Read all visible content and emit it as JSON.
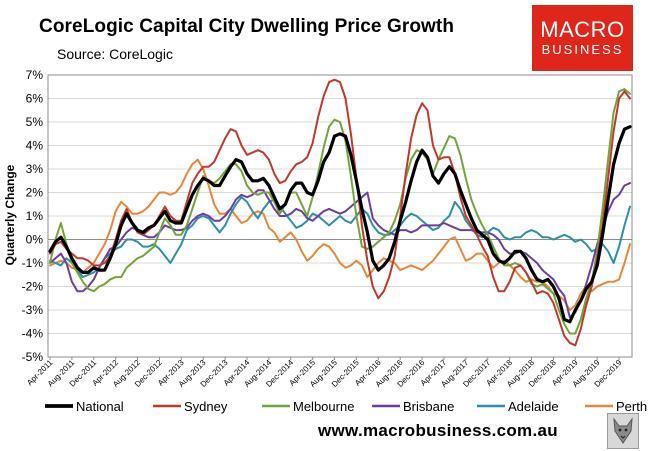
{
  "title": "CoreLogic Capital City Dwelling Price Growth",
  "source": "Source: CoreLogic",
  "logo": {
    "line1": "MACRO",
    "line2": "BUSINESS",
    "color": "#e0251b"
  },
  "footer": "www.macrobusiness.com.au",
  "badge_icon": "wolf-mascot-icon",
  "chart_data": {
    "type": "line",
    "title": "CoreLogic Capital City Dwelling Price Growth",
    "xlabel": "",
    "ylabel": "Quarterly Change",
    "ylim": [
      -5,
      7
    ],
    "yticks": [
      "-5%",
      "-4%",
      "-3%",
      "-2%",
      "-1%",
      "0%",
      "1%",
      "2%",
      "3%",
      "4%",
      "5%",
      "6%",
      "7%"
    ],
    "xticks": [
      "Apr-2011",
      "Aug-2011",
      "Dec-2011",
      "Apr-2012",
      "Aug-2012",
      "Dec-2012",
      "Apr-2013",
      "Aug-2013",
      "Dec-2013",
      "Apr-2014",
      "Aug-2014",
      "Dec-2014",
      "Apr-2015",
      "Aug-2015",
      "Dec-2015",
      "Apr-2016",
      "Aug-2016",
      "Dec-2016",
      "Apr-2017",
      "Aug-2017",
      "Dec-2017",
      "Apr-2018",
      "Aug-2018",
      "Dec-2018",
      "Apr-2019",
      "Aug-2019",
      "Dec-2019"
    ],
    "x_start": "Apr-2011",
    "x_interval_months": 1,
    "legend_position": "bottom",
    "series": [
      {
        "name": "National",
        "color": "#000000",
        "width": 3.2,
        "values": [
          -0.5,
          -0.1,
          0.1,
          -0.3,
          -0.8,
          -1.2,
          -1.4,
          -1.4,
          -1.2,
          -1.3,
          -1.3,
          -0.8,
          -0.2,
          0.6,
          1.1,
          0.7,
          0.4,
          0.3,
          0.5,
          0.6,
          0.9,
          1.2,
          0.8,
          0.7,
          0.7,
          1.3,
          1.9,
          2.3,
          2.6,
          2.5,
          2.3,
          2.3,
          2.7,
          3.1,
          3.4,
          3.3,
          2.8,
          2.5,
          2.5,
          2.6,
          2.3,
          1.8,
          1.3,
          1.5,
          2.1,
          2.4,
          2.4,
          2.0,
          1.9,
          2.5,
          3.3,
          3.7,
          4.4,
          4.5,
          4.4,
          3.6,
          2.5,
          1.3,
          0.3,
          -0.9,
          -1.3,
          -1.1,
          -0.8,
          -0.1,
          0.8,
          1.6,
          2.5,
          3.3,
          3.8,
          3.5,
          2.7,
          2.4,
          2.8,
          3.1,
          2.8,
          2.1,
          1.5,
          0.9,
          0.4,
          0.2,
          0.0,
          -0.6,
          -0.9,
          -1.0,
          -0.8,
          -0.5,
          -0.5,
          -0.8,
          -1.3,
          -1.7,
          -1.8,
          -1.7,
          -2.0,
          -2.5,
          -3.4,
          -3.5,
          -3.0,
          -2.6,
          -2.1,
          -1.8,
          -1.1,
          0.2,
          1.7,
          3.2,
          4.1,
          4.7,
          4.8
        ]
      },
      {
        "name": "Sydney",
        "color": "#c0392b",
        "width": 2,
        "values": [
          -0.6,
          -0.2,
          -0.1,
          -0.4,
          -0.6,
          -0.8,
          -0.8,
          -0.9,
          -1.1,
          -1.1,
          -1.0,
          -0.7,
          0.0,
          0.8,
          1.3,
          0.7,
          0.3,
          0.2,
          0.4,
          0.6,
          1.0,
          1.4,
          1.0,
          0.8,
          0.8,
          1.6,
          2.4,
          2.8,
          3.1,
          3.1,
          3.3,
          3.8,
          4.3,
          4.7,
          4.6,
          4.0,
          3.6,
          3.7,
          3.8,
          3.7,
          3.4,
          2.8,
          2.4,
          2.5,
          2.9,
          3.2,
          3.3,
          3.5,
          4.1,
          5.2,
          6.1,
          6.7,
          6.8,
          6.7,
          6.0,
          4.5,
          2.6,
          0.6,
          -0.9,
          -2.0,
          -2.5,
          -2.2,
          -1.6,
          -0.7,
          1.0,
          2.8,
          4.3,
          5.3,
          5.8,
          5.5,
          4.0,
          3.4,
          3.5,
          3.5,
          2.8,
          1.8,
          1.0,
          0.6,
          0.2,
          -0.3,
          -0.7,
          -1.6,
          -2.2,
          -2.2,
          -1.8,
          -1.2,
          -1.1,
          -1.4,
          -1.8,
          -2.3,
          -2.2,
          -2.3,
          -2.7,
          -3.4,
          -4.1,
          -4.4,
          -4.5,
          -3.8,
          -2.8,
          -2.0,
          -0.8,
          0.6,
          2.6,
          4.6,
          6.0,
          6.3,
          6.0
        ]
      },
      {
        "name": "Melbourne",
        "color": "#73a33a",
        "width": 2,
        "values": [
          -1.0,
          0.0,
          0.7,
          -0.2,
          -1.0,
          -1.4,
          -1.8,
          -2.1,
          -2.2,
          -2.0,
          -1.9,
          -1.7,
          -1.6,
          -1.6,
          -1.2,
          -1.0,
          -0.8,
          -0.7,
          -0.5,
          -0.3,
          0.3,
          0.9,
          0.6,
          0.2,
          0.2,
          0.6,
          1.3,
          2.0,
          2.7,
          2.5,
          2.4,
          2.6,
          2.9,
          3.2,
          3.2,
          2.9,
          2.3,
          2.0,
          1.9,
          2.0,
          2.0,
          1.6,
          1.1,
          1.5,
          2.0,
          2.0,
          1.5,
          1.0,
          1.8,
          2.8,
          3.9,
          4.8,
          5.1,
          5.0,
          4.2,
          2.7,
          1.0,
          -0.3,
          -0.4,
          -0.3,
          -0.1,
          0.1,
          0.3,
          0.8,
          1.5,
          2.6,
          3.4,
          3.8,
          3.7,
          3.4,
          2.8,
          3.4,
          3.9,
          4.4,
          4.3,
          3.6,
          2.6,
          1.7,
          1.1,
          0.6,
          0.2,
          -0.3,
          -0.8,
          -1.1,
          -1.1,
          -1.0,
          -1.1,
          -1.4,
          -1.9,
          -2.0,
          -1.9,
          -2.1,
          -2.3,
          -3.0,
          -3.6,
          -4.0,
          -4.0,
          -3.4,
          -2.5,
          -1.8,
          -0.5,
          1.3,
          3.4,
          5.4,
          6.3,
          6.4,
          6.2
        ]
      },
      {
        "name": "Brisbane",
        "color": "#6b3fa0",
        "width": 2,
        "values": [
          -1.0,
          -0.8,
          -0.6,
          -1.0,
          -1.8,
          -2.2,
          -2.2,
          -2.0,
          -1.7,
          -1.2,
          -0.8,
          -0.4,
          -0.3,
          0.0,
          0.3,
          0.5,
          0.4,
          0.2,
          0.1,
          0.1,
          0.3,
          0.6,
          0.5,
          0.4,
          0.4,
          0.5,
          0.8,
          1.0,
          1.1,
          1.0,
          0.8,
          0.8,
          1.0,
          1.3,
          1.7,
          1.9,
          1.8,
          1.9,
          2.1,
          2.1,
          1.7,
          1.3,
          1.0,
          1.0,
          1.1,
          1.3,
          1.2,
          0.9,
          0.8,
          1.0,
          1.2,
          1.3,
          1.2,
          1.1,
          1.2,
          1.4,
          1.6,
          1.8,
          2.0,
          0.9,
          0.6,
          0.4,
          0.3,
          0.2,
          0.4,
          0.4,
          0.3,
          0.4,
          0.6,
          0.6,
          0.6,
          0.6,
          0.7,
          0.6,
          0.5,
          0.4,
          0.4,
          0.4,
          0.3,
          0.3,
          0.3,
          0.2,
          0.0,
          -0.4,
          -0.6,
          -0.6,
          -0.5,
          -0.6,
          -0.8,
          -1.0,
          -1.3,
          -1.5,
          -1.7,
          -2.1,
          -2.4,
          -3.3,
          -3.1,
          -2.6,
          -1.9,
          -1.1,
          -0.2,
          0.5,
          1.2,
          1.7,
          1.9,
          2.3,
          2.4
        ]
      },
      {
        "name": "Adelaide",
        "color": "#2e8fa8",
        "width": 2,
        "values": [
          -0.9,
          -1.0,
          -1.1,
          -0.8,
          -1.0,
          -1.3,
          -1.6,
          -1.5,
          -1.4,
          -1.2,
          -0.8,
          -0.6,
          -0.4,
          -0.3,
          0.0,
          0.0,
          -0.1,
          -0.3,
          -0.3,
          -0.2,
          -0.4,
          -0.7,
          -1.0,
          -0.6,
          -0.2,
          0.4,
          0.6,
          0.9,
          1.0,
          0.9,
          0.6,
          0.3,
          0.6,
          1.1,
          1.5,
          1.8,
          1.6,
          1.2,
          0.9,
          1.3,
          1.6,
          1.7,
          1.4,
          1.1,
          0.8,
          0.5,
          0.6,
          0.8,
          1.1,
          1.0,
          0.8,
          0.6,
          0.8,
          1.0,
          0.8,
          0.7,
          1.0,
          1.3,
          1.1,
          0.6,
          0.3,
          0.2,
          0.2,
          0.4,
          0.6,
          0.9,
          1.1,
          1.0,
          0.8,
          0.6,
          0.4,
          0.5,
          0.8,
          1.0,
          1.6,
          1.3,
          0.8,
          0.5,
          0.2,
          0.1,
          0.3,
          0.5,
          0.4,
          0.1,
          0.0,
          0.1,
          0.1,
          0.3,
          0.4,
          0.3,
          0.1,
          0.1,
          0.0,
          0.1,
          0.2,
          0.1,
          -0.1,
          0.0,
          -0.2,
          -0.5,
          -0.4,
          -0.2,
          -0.5,
          -1.0,
          -0.3,
          0.6,
          1.4
        ]
      },
      {
        "name": "Perth",
        "color": "#e8873a",
        "width": 2,
        "values": [
          -1.1,
          -1.0,
          -0.9,
          -1.0,
          -1.2,
          -1.3,
          -1.4,
          -1.2,
          -1.0,
          -0.6,
          -0.2,
          0.4,
          1.2,
          1.6,
          1.4,
          1.1,
          1.1,
          1.2,
          1.4,
          1.7,
          2.0,
          2.0,
          1.9,
          2.0,
          2.3,
          2.8,
          3.2,
          3.4,
          3.0,
          2.3,
          1.5,
          1.1,
          1.1,
          1.3,
          1.0,
          0.7,
          0.8,
          1.1,
          1.2,
          1.1,
          0.5,
          0.3,
          -0.1,
          0.1,
          0.3,
          0.0,
          -0.5,
          -0.9,
          -0.7,
          -0.4,
          -0.2,
          -0.3,
          -0.6,
          -1.0,
          -1.2,
          -1.1,
          -0.9,
          -1.1,
          -1.6,
          -1.3,
          -1.0,
          -0.8,
          -0.9,
          -1.0,
          -1.3,
          -1.2,
          -1.1,
          -1.2,
          -1.3,
          -1.1,
          -0.9,
          -0.6,
          -0.3,
          0.0,
          0.1,
          -0.4,
          -0.9,
          -0.8,
          -0.6,
          -0.6,
          -0.9,
          -1.2,
          -1.0,
          -0.9,
          -1.1,
          -1.3,
          -1.6,
          -1.8,
          -1.7,
          -1.8,
          -1.8,
          -2.0,
          -2.3,
          -2.4,
          -2.6,
          -3.0,
          -2.8,
          -2.3,
          -2.0,
          -2.2,
          -2.0,
          -1.9,
          -1.8,
          -1.8,
          -1.7,
          -1.0,
          -0.2
        ]
      }
    ]
  }
}
